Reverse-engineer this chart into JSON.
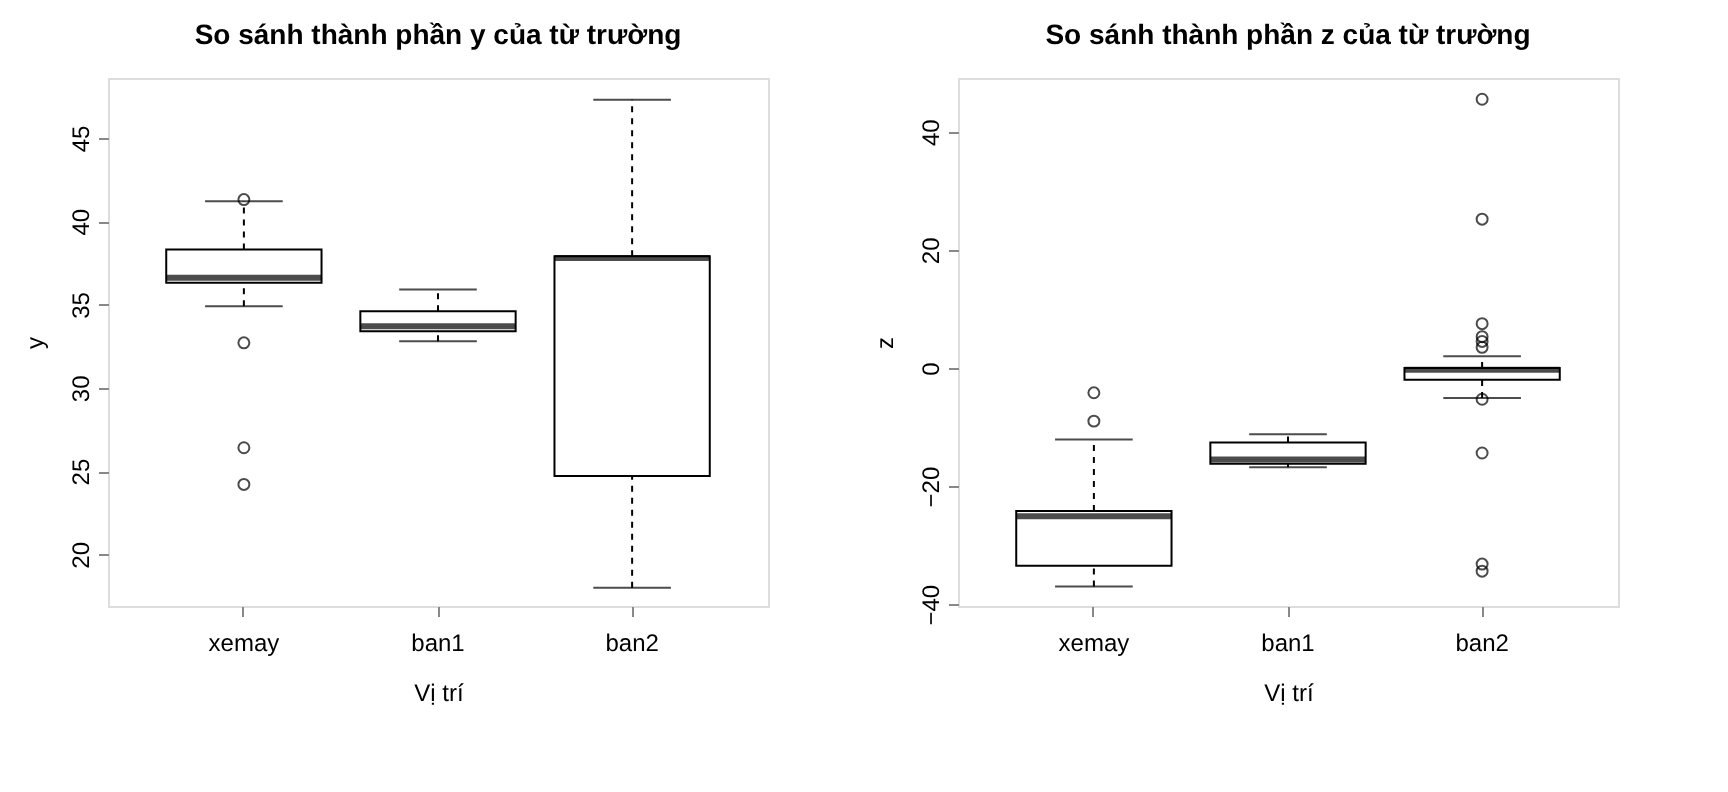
{
  "chart_data": [
    {
      "type": "box",
      "title": "So sánh thành phần y của từ trường",
      "xlabel": "Vị trí",
      "ylabel": "y",
      "categories": [
        "xemay",
        "ban1",
        "ban2"
      ],
      "ylim": [
        16.9,
        48.6
      ],
      "yticks": [
        20,
        25,
        30,
        35,
        40,
        45
      ],
      "boxes": [
        {
          "low": 34.9,
          "q1": 36.3,
          "median": 36.6,
          "q3": 38.3,
          "high": 41.2,
          "outliers": [
            41.3,
            32.7,
            26.4,
            24.2
          ]
        },
        {
          "low": 32.8,
          "q1": 33.4,
          "median": 33.7,
          "q3": 34.6,
          "high": 35.9
        },
        {
          "low": 18.0,
          "q1": 24.7,
          "median": 37.8,
          "q3": 37.9,
          "high": 47.3
        }
      ]
    },
    {
      "type": "box",
      "title": "So sánh thành phần z của từ trường",
      "xlabel": "Vị trí",
      "ylabel": "z",
      "categories": [
        "xemay",
        "ban1",
        "ban2"
      ],
      "ylim": [
        -40.3,
        49.1
      ],
      "yticks": [
        -40,
        -20,
        0,
        20,
        40
      ],
      "boxes": [
        {
          "low": -37.0,
          "q1": -33.5,
          "median": -25.1,
          "q3": -24.2,
          "high": -12.1,
          "outliers": [
            -4.2,
            -9.0
          ]
        },
        {
          "low": -16.8,
          "q1": -16.2,
          "median": -15.5,
          "q3": -12.6,
          "high": -11.2
        },
        {
          "low": -5.1,
          "q1": -2.0,
          "median": -0.3,
          "q3": 0.0,
          "high": 2.0,
          "outliers": [
            45.5,
            25.2,
            7.5,
            5.3,
            4.5,
            3.5,
            -5.3,
            -14.4,
            -33.2,
            -34.4
          ]
        }
      ]
    }
  ]
}
